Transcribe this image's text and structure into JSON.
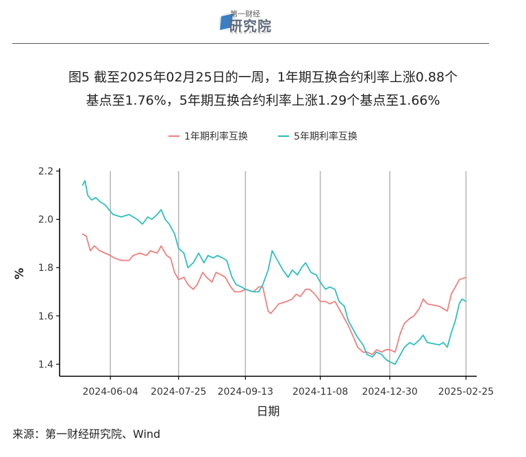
{
  "header": {
    "logo_top": "第一财经",
    "logo_main": "研究院",
    "logo_sub": "RESEARCH"
  },
  "title": {
    "line1": "图5  截至2025年02月25日的一周，1年期互换合约利率上涨0.88个",
    "line2": "基点至1.76%，5年期互换合约利率上涨1.29个基点至1.66%"
  },
  "source": "来源：第一财经研究院、Wind",
  "chart_data": {
    "type": "line",
    "xlabel": "日期",
    "ylabel": "%",
    "ylim": [
      1.35,
      2.2
    ],
    "yticks": [
      1.4,
      1.6,
      1.8,
      2.0,
      2.2
    ],
    "ytick_labels": [
      "1.4",
      "1.6",
      "1.8",
      "2.0",
      "2.2"
    ],
    "xlim": [
      "2024-04-27",
      "2025-03-05"
    ],
    "xticks": [
      "2024-06-04",
      "2024-07-25",
      "2024-09-13",
      "2024-11-08",
      "2024-12-30",
      "2025-02-25"
    ],
    "grid": "vertical",
    "legend": "top",
    "series": [
      {
        "name": "1年期利率互换",
        "color": "#F07F7B",
        "points": [
          [
            "2024-05-14",
            1.94
          ],
          [
            "2024-05-17",
            1.93
          ],
          [
            "2024-05-20",
            1.87
          ],
          [
            "2024-05-23",
            1.89
          ],
          [
            "2024-05-27",
            1.87
          ],
          [
            "2024-05-31",
            1.86
          ],
          [
            "2024-06-04",
            1.85
          ],
          [
            "2024-06-07",
            1.84
          ],
          [
            "2024-06-12",
            1.83
          ],
          [
            "2024-06-18",
            1.83
          ],
          [
            "2024-06-21",
            1.85
          ],
          [
            "2024-06-26",
            1.86
          ],
          [
            "2024-07-01",
            1.85
          ],
          [
            "2024-07-04",
            1.87
          ],
          [
            "2024-07-09",
            1.86
          ],
          [
            "2024-07-12",
            1.89
          ],
          [
            "2024-07-16",
            1.85
          ],
          [
            "2024-07-19",
            1.84
          ],
          [
            "2024-07-22",
            1.78
          ],
          [
            "2024-07-25",
            1.75
          ],
          [
            "2024-07-29",
            1.76
          ],
          [
            "2024-08-01",
            1.73
          ],
          [
            "2024-08-05",
            1.71
          ],
          [
            "2024-08-08",
            1.73
          ],
          [
            "2024-08-12",
            1.78
          ],
          [
            "2024-08-15",
            1.76
          ],
          [
            "2024-08-19",
            1.74
          ],
          [
            "2024-08-22",
            1.78
          ],
          [
            "2024-08-26",
            1.77
          ],
          [
            "2024-08-29",
            1.76
          ],
          [
            "2024-09-02",
            1.72
          ],
          [
            "2024-09-05",
            1.7
          ],
          [
            "2024-09-09",
            1.7
          ],
          [
            "2024-09-13",
            1.71
          ],
          [
            "2024-09-19",
            1.7
          ],
          [
            "2024-09-23",
            1.72
          ],
          [
            "2024-09-26",
            1.72
          ],
          [
            "2024-09-30",
            1.62
          ],
          [
            "2024-10-02",
            1.61
          ],
          [
            "2024-10-08",
            1.65
          ],
          [
            "2024-10-14",
            1.66
          ],
          [
            "2024-10-18",
            1.67
          ],
          [
            "2024-10-21",
            1.69
          ],
          [
            "2024-10-24",
            1.68
          ],
          [
            "2024-10-28",
            1.71
          ],
          [
            "2024-10-31",
            1.71
          ],
          [
            "2024-11-04",
            1.69
          ],
          [
            "2024-11-08",
            1.66
          ],
          [
            "2024-11-12",
            1.66
          ],
          [
            "2024-11-15",
            1.65
          ],
          [
            "2024-11-19",
            1.66
          ],
          [
            "2024-11-22",
            1.63
          ],
          [
            "2024-11-26",
            1.59
          ],
          [
            "2024-11-29",
            1.56
          ],
          [
            "2024-12-03",
            1.51
          ],
          [
            "2024-12-06",
            1.47
          ],
          [
            "2024-12-10",
            1.45
          ],
          [
            "2024-12-13",
            1.45
          ],
          [
            "2024-12-17",
            1.44
          ],
          [
            "2024-12-20",
            1.46
          ],
          [
            "2024-12-24",
            1.45
          ],
          [
            "2024-12-27",
            1.46
          ],
          [
            "2024-12-30",
            1.46
          ],
          [
            "2025-01-03",
            1.45
          ],
          [
            "2025-01-07",
            1.53
          ],
          [
            "2025-01-10",
            1.57
          ],
          [
            "2025-01-14",
            1.59
          ],
          [
            "2025-01-17",
            1.6
          ],
          [
            "2025-01-21",
            1.63
          ],
          [
            "2025-01-24",
            1.67
          ],
          [
            "2025-01-27",
            1.65
          ],
          [
            "2025-02-05",
            1.64
          ],
          [
            "2025-02-08",
            1.63
          ],
          [
            "2025-02-11",
            1.62
          ],
          [
            "2025-02-14",
            1.69
          ],
          [
            "2025-02-17",
            1.72
          ],
          [
            "2025-02-20",
            1.75
          ],
          [
            "2025-02-25",
            1.76
          ]
        ]
      },
      {
        "name": "5年期利率互换",
        "color": "#2BBFBE",
        "points": [
          [
            "2024-05-14",
            2.14
          ],
          [
            "2024-05-16",
            2.16
          ],
          [
            "2024-05-18",
            2.1
          ],
          [
            "2024-05-21",
            2.08
          ],
          [
            "2024-05-24",
            2.09
          ],
          [
            "2024-05-28",
            2.07
          ],
          [
            "2024-05-31",
            2.06
          ],
          [
            "2024-06-03",
            2.04
          ],
          [
            "2024-06-06",
            2.02
          ],
          [
            "2024-06-12",
            2.01
          ],
          [
            "2024-06-18",
            2.02
          ],
          [
            "2024-06-24",
            2.0
          ],
          [
            "2024-06-28",
            1.98
          ],
          [
            "2024-07-02",
            2.01
          ],
          [
            "2024-07-05",
            2.0
          ],
          [
            "2024-07-09",
            2.02
          ],
          [
            "2024-07-12",
            2.04
          ],
          [
            "2024-07-15",
            2.0
          ],
          [
            "2024-07-18",
            1.98
          ],
          [
            "2024-07-22",
            1.94
          ],
          [
            "2024-07-25",
            1.88
          ],
          [
            "2024-07-29",
            1.86
          ],
          [
            "2024-08-01",
            1.8
          ],
          [
            "2024-08-05",
            1.82
          ],
          [
            "2024-08-09",
            1.86
          ],
          [
            "2024-08-13",
            1.82
          ],
          [
            "2024-08-16",
            1.85
          ],
          [
            "2024-08-20",
            1.84
          ],
          [
            "2024-08-23",
            1.85
          ],
          [
            "2024-08-27",
            1.84
          ],
          [
            "2024-08-30",
            1.83
          ],
          [
            "2024-09-03",
            1.76
          ],
          [
            "2024-09-06",
            1.73
          ],
          [
            "2024-09-10",
            1.72
          ],
          [
            "2024-09-13",
            1.71
          ],
          [
            "2024-09-19",
            1.7
          ],
          [
            "2024-09-23",
            1.7
          ],
          [
            "2024-09-26",
            1.73
          ],
          [
            "2024-09-30",
            1.79
          ],
          [
            "2024-10-03",
            1.87
          ],
          [
            "2024-10-08",
            1.82
          ],
          [
            "2024-10-11",
            1.79
          ],
          [
            "2024-10-15",
            1.76
          ],
          [
            "2024-10-18",
            1.79
          ],
          [
            "2024-10-22",
            1.77
          ],
          [
            "2024-10-25",
            1.8
          ],
          [
            "2024-10-28",
            1.82
          ],
          [
            "2024-11-01",
            1.78
          ],
          [
            "2024-11-05",
            1.77
          ],
          [
            "2024-11-08",
            1.74
          ],
          [
            "2024-11-12",
            1.71
          ],
          [
            "2024-11-15",
            1.72
          ],
          [
            "2024-11-19",
            1.71
          ],
          [
            "2024-11-22",
            1.66
          ],
          [
            "2024-11-26",
            1.64
          ],
          [
            "2024-11-29",
            1.58
          ],
          [
            "2024-12-03",
            1.54
          ],
          [
            "2024-12-06",
            1.51
          ],
          [
            "2024-12-10",
            1.48
          ],
          [
            "2024-12-13",
            1.44
          ],
          [
            "2024-12-17",
            1.43
          ],
          [
            "2024-12-20",
            1.45
          ],
          [
            "2024-12-24",
            1.44
          ],
          [
            "2024-12-27",
            1.42
          ],
          [
            "2024-12-30",
            1.41
          ],
          [
            "2025-01-03",
            1.4
          ],
          [
            "2025-01-07",
            1.44
          ],
          [
            "2025-01-10",
            1.47
          ],
          [
            "2025-01-14",
            1.49
          ],
          [
            "2025-01-17",
            1.48
          ],
          [
            "2025-01-21",
            1.5
          ],
          [
            "2025-01-24",
            1.52
          ],
          [
            "2025-01-27",
            1.49
          ],
          [
            "2025-02-05",
            1.48
          ],
          [
            "2025-02-08",
            1.49
          ],
          [
            "2025-02-11",
            1.47
          ],
          [
            "2025-02-14",
            1.53
          ],
          [
            "2025-02-17",
            1.58
          ],
          [
            "2025-02-20",
            1.65
          ],
          [
            "2025-02-22",
            1.67
          ],
          [
            "2025-02-25",
            1.66
          ]
        ]
      }
    ]
  }
}
